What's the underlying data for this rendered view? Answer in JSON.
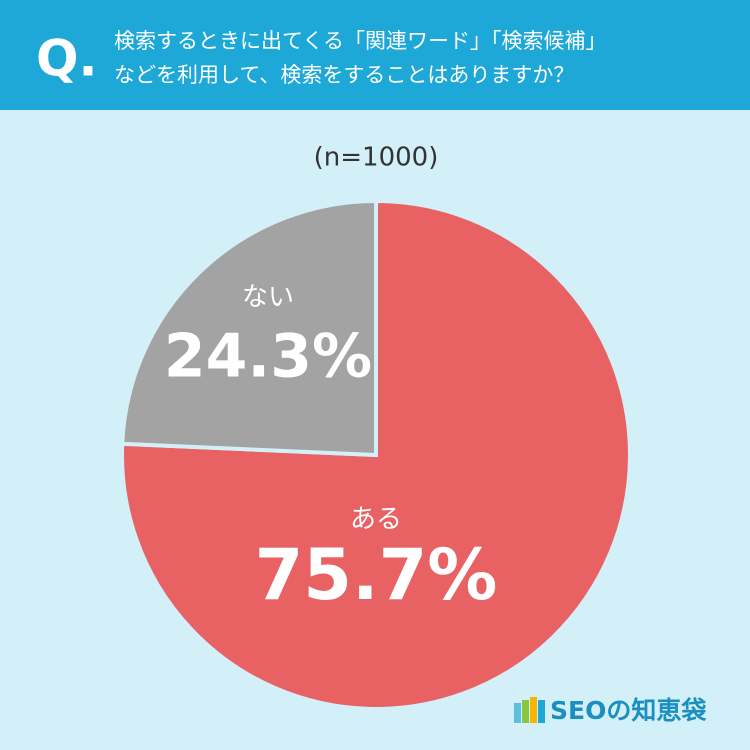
{
  "question_marker": "Q.",
  "chart_data": {
    "type": "pie",
    "title": [
      "検索するときに出てくる「関連ワード」「検索候補」",
      "などを利用して、検索をすることはありますか？"
    ],
    "subtitle": "(n=1000)",
    "categories": [
      "ある",
      "ない"
    ],
    "values": [
      75.7,
      24.3
    ],
    "value_labels": [
      "75.7%",
      "24.3%"
    ],
    "colors": [
      "#e86264",
      "#a3a3a3"
    ]
  },
  "brand": "SEOの知恵袋"
}
